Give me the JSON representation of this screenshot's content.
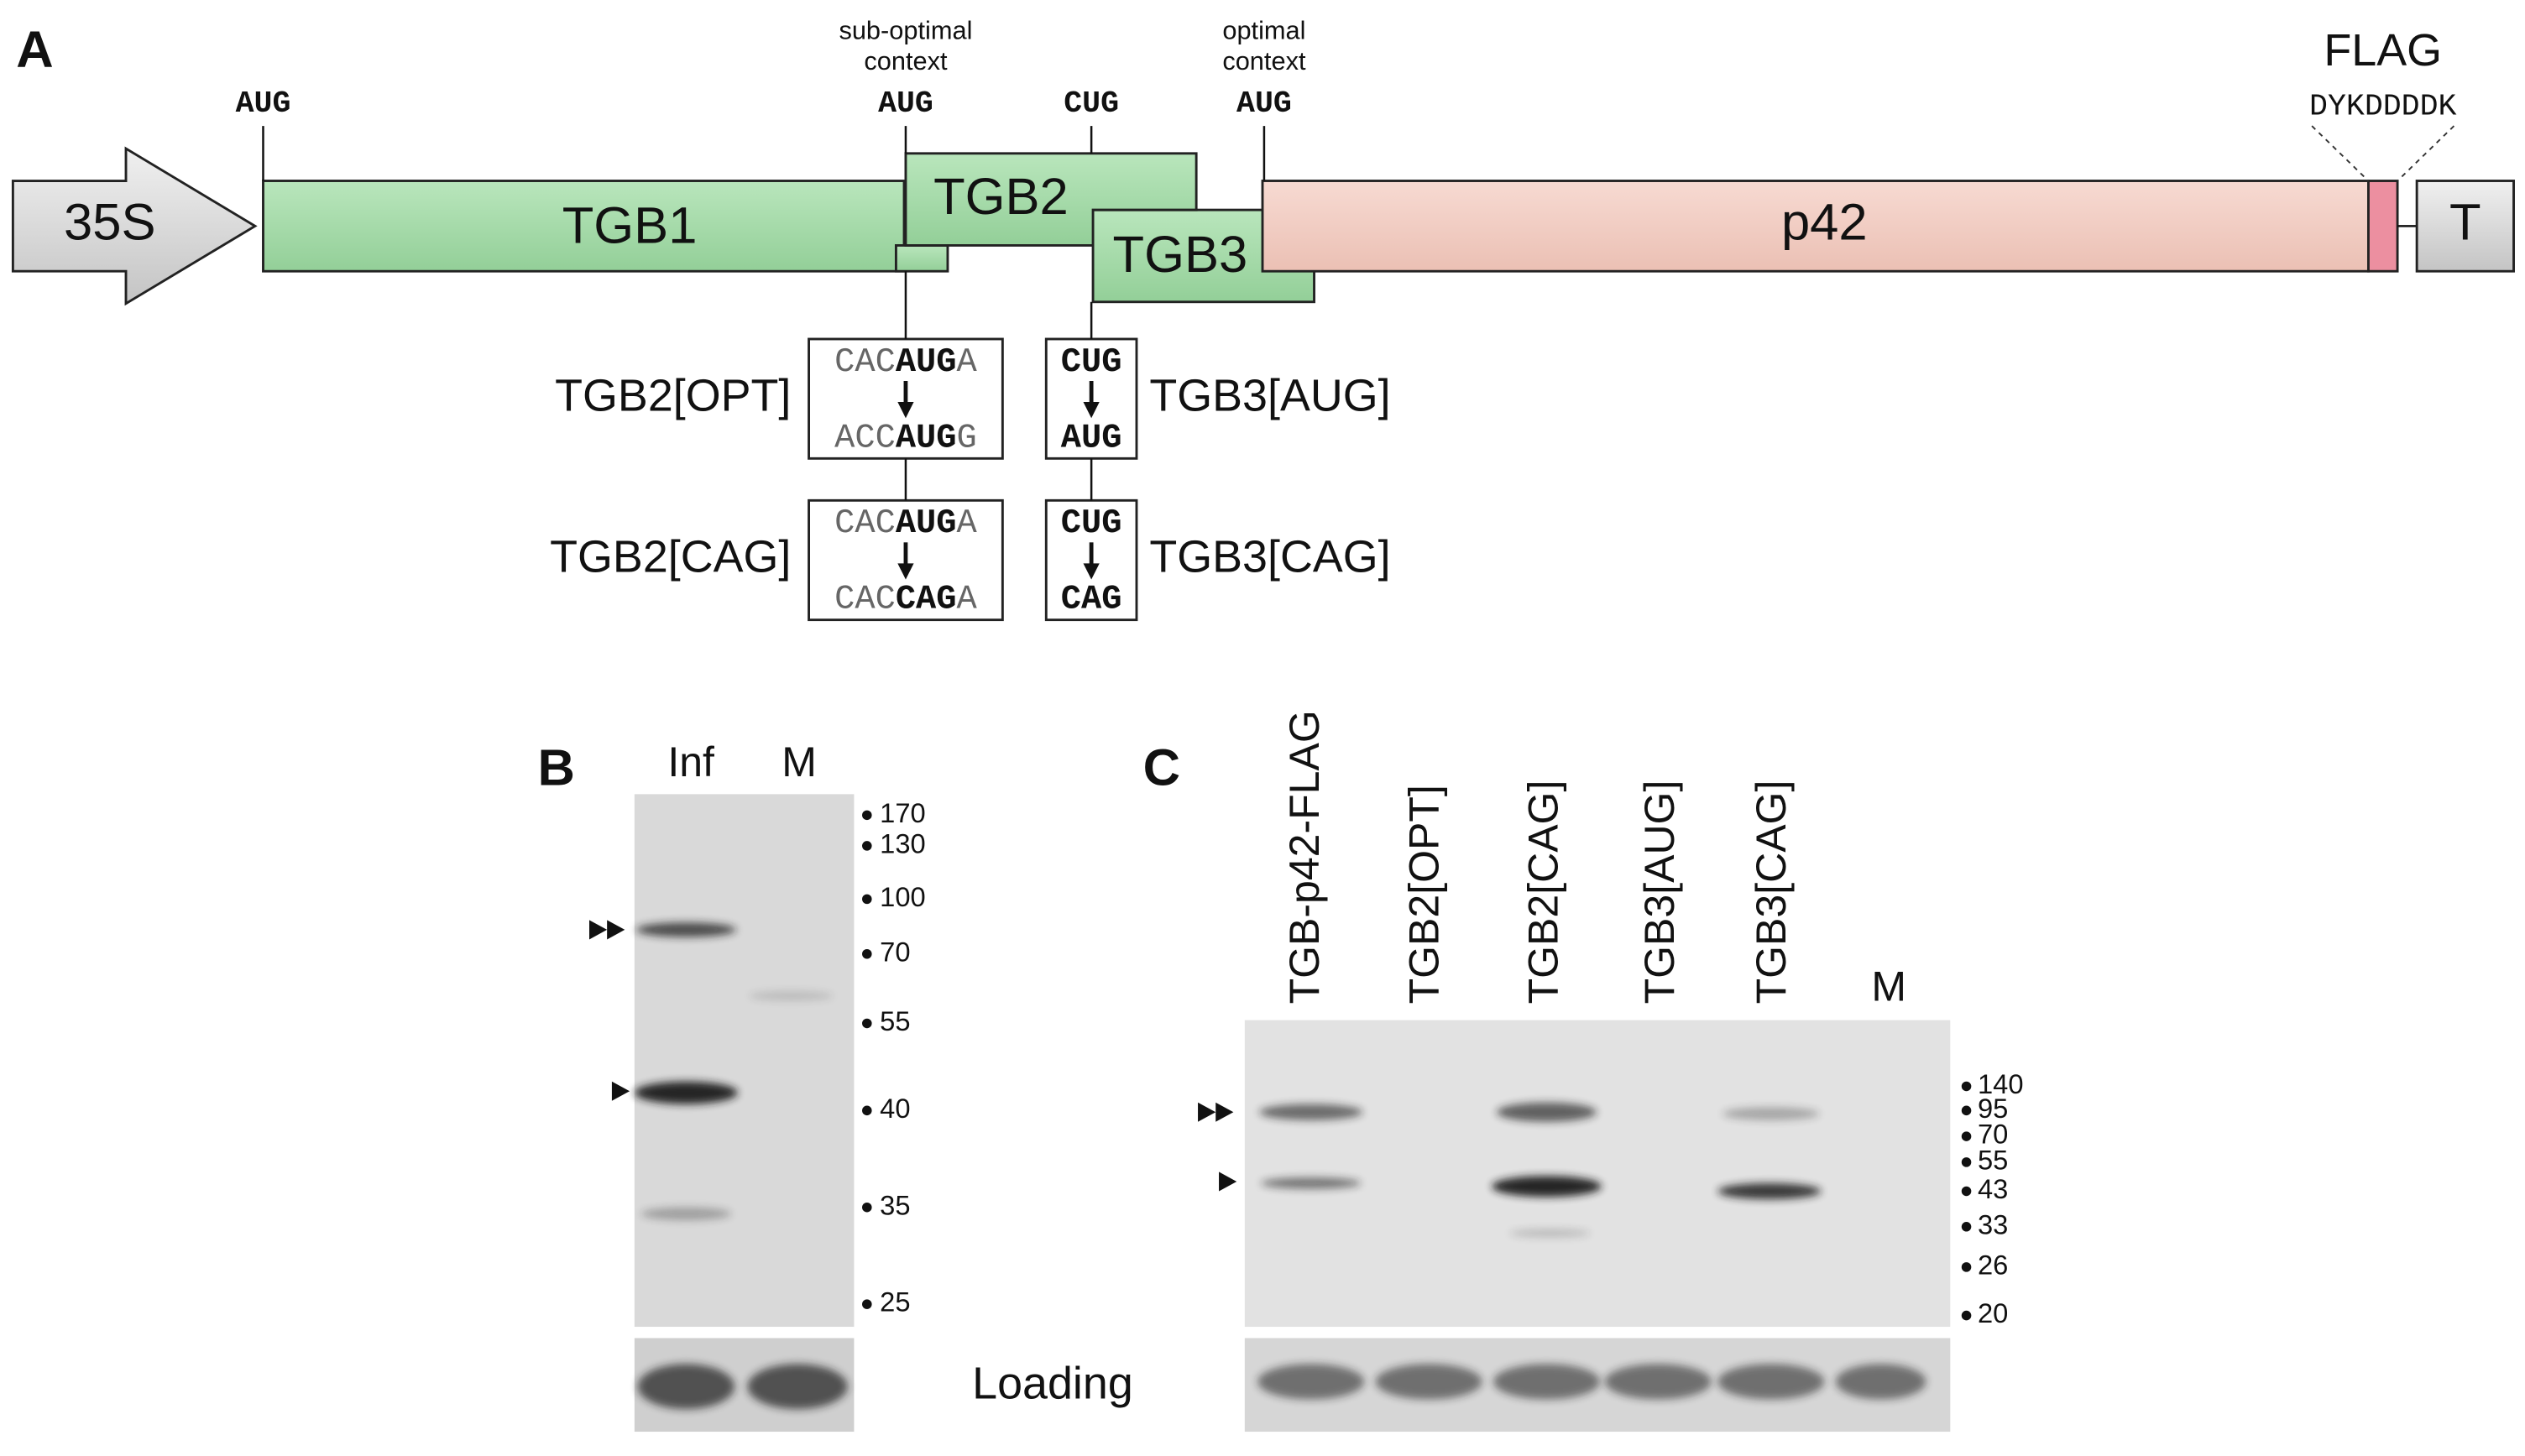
{
  "panel_a": {
    "label": "A",
    "start_codons": [
      {
        "codon": "AUG"
      },
      {
        "context_line1": "sub-optimal",
        "context_line2": "context",
        "codon": "AUG"
      },
      {
        "codon": "CUG"
      },
      {
        "context_line1": "optimal",
        "context_line2": "context",
        "codon": "AUG"
      }
    ],
    "elements": {
      "promoter": "35S",
      "tgb1": "TGB1",
      "tgb2": "TGB2",
      "tgb3": "TGB3",
      "p42": "p42",
      "terminator": "T"
    },
    "flag": {
      "label": "FLAG",
      "sequence": "DYKDDDDK"
    },
    "mutants": [
      {
        "name": "TGB2[OPT]",
        "from": {
          "prefix": "CAC",
          "codon": "AUG",
          "suffix": "A"
        },
        "to": {
          "prefix": "ACC",
          "codon": "AUG",
          "suffix": "G"
        }
      },
      {
        "name": "TGB2[CAG]",
        "from": {
          "prefix": "CAC",
          "codon": "AUG",
          "suffix": "A"
        },
        "to": {
          "prefix": "CAC",
          "codon": "CAG",
          "suffix": "A"
        }
      },
      {
        "name": "TGB3[AUG]",
        "from": {
          "codon": "CUG"
        },
        "to": {
          "codon": "AUG"
        }
      },
      {
        "name": "TGB3[CAG]",
        "from": {
          "codon": "CUG"
        },
        "to": {
          "codon": "CAG"
        }
      }
    ]
  },
  "panel_b": {
    "label": "B",
    "lanes": [
      "Inf",
      "M"
    ],
    "markers": [
      170,
      130,
      100,
      70,
      55,
      40,
      35,
      25
    ],
    "loading_label": "Loading"
  },
  "panel_c": {
    "label": "C",
    "lanes": [
      "TGB-p42-FLAG",
      "TGB2[OPT]",
      "TGB2[CAG]",
      "TGB3[AUG]",
      "TGB3[CAG]",
      "M"
    ],
    "markers": [
      140,
      95,
      70,
      55,
      43,
      33,
      26,
      20
    ]
  }
}
